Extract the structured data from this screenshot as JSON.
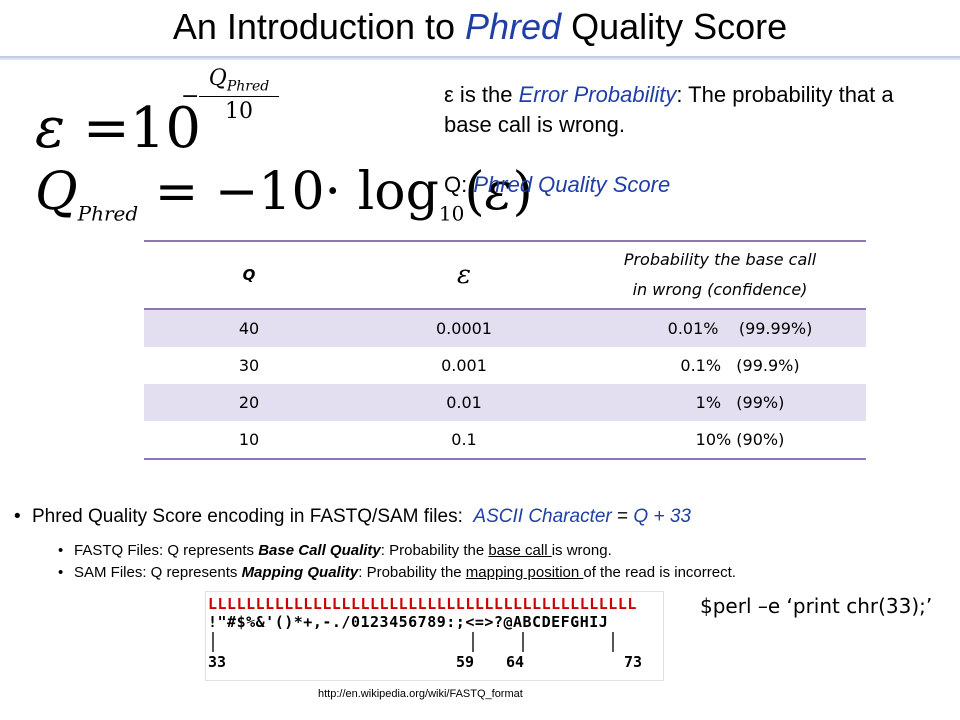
{
  "title": {
    "prefix": "An Introduction to ",
    "emph": "Phred",
    "suffix": " Quality Score"
  },
  "formula1": {
    "lhs": "ε",
    "eq": "=",
    "base": "10",
    "minus": "−",
    "num_q": "Q",
    "num_sub": "Phred",
    "den": "10"
  },
  "formula2": {
    "q": "Q",
    "q_sub": "Phred",
    "rhs_pre": "= −10·",
    "log": "log",
    "log_sub": "10",
    "arg_open": "(",
    "arg": "ε",
    "arg_close": ")"
  },
  "definition1": {
    "symbol": "ε",
    "is_the": " is the ",
    "term": "Error Probability",
    "rest": ": The probability that a base call is wrong."
  },
  "definition2": {
    "symbol": "Q",
    "colon": ": ",
    "term": "Phred Quality Score"
  },
  "table": {
    "headers": {
      "q": "Q",
      "eps": "ε",
      "prob_line1": "Probability the base call",
      "prob_line2": "in wrong (confidence)"
    },
    "rows": [
      {
        "q": "40",
        "eps": "0.0001",
        "prob": "0.01%    (99.99%)"
      },
      {
        "q": "30",
        "eps": "0.001",
        "prob": "0.1%   (99.9%)"
      },
      {
        "q": "20",
        "eps": "0.01",
        "prob": "1%   (99%)"
      },
      {
        "q": "10",
        "eps": "0.1",
        "prob": "10% (90%)"
      }
    ]
  },
  "bullets": {
    "main": {
      "text": "Phred Quality Score encoding in FASTQ/SAM files:  ",
      "formula_a": "ASCII Character",
      "formula_eq": " = ",
      "formula_b": "Q + 33"
    },
    "fastq": {
      "pre": "FASTQ Files: Q represents ",
      "bold": "Base Call Quality",
      "mid": ": Probability the ",
      "ul": "base call ",
      "post": "is wrong."
    },
    "sam": {
      "pre": "SAM Files: Q represents ",
      "bold": "Mapping Quality",
      "mid": ": Probability the ",
      "ul": "mapping position ",
      "post": "of the read is incorrect."
    }
  },
  "ascii_image": {
    "row1": "LLLLLLLLLLLLLLLLLLLLLLLLLLLLLLLLLLLLLLLLLLLLL",
    "row2": "!\"#$%&'()*+,-./0123456789:;<=>?@ABCDEFGHIJ",
    "labels": [
      "33",
      "59",
      "64",
      "73"
    ]
  },
  "perl_command": "$perl –e ‘print chr(33);’",
  "source_url": "http://en.wikipedia.org/wiki/FASTQ_format"
}
